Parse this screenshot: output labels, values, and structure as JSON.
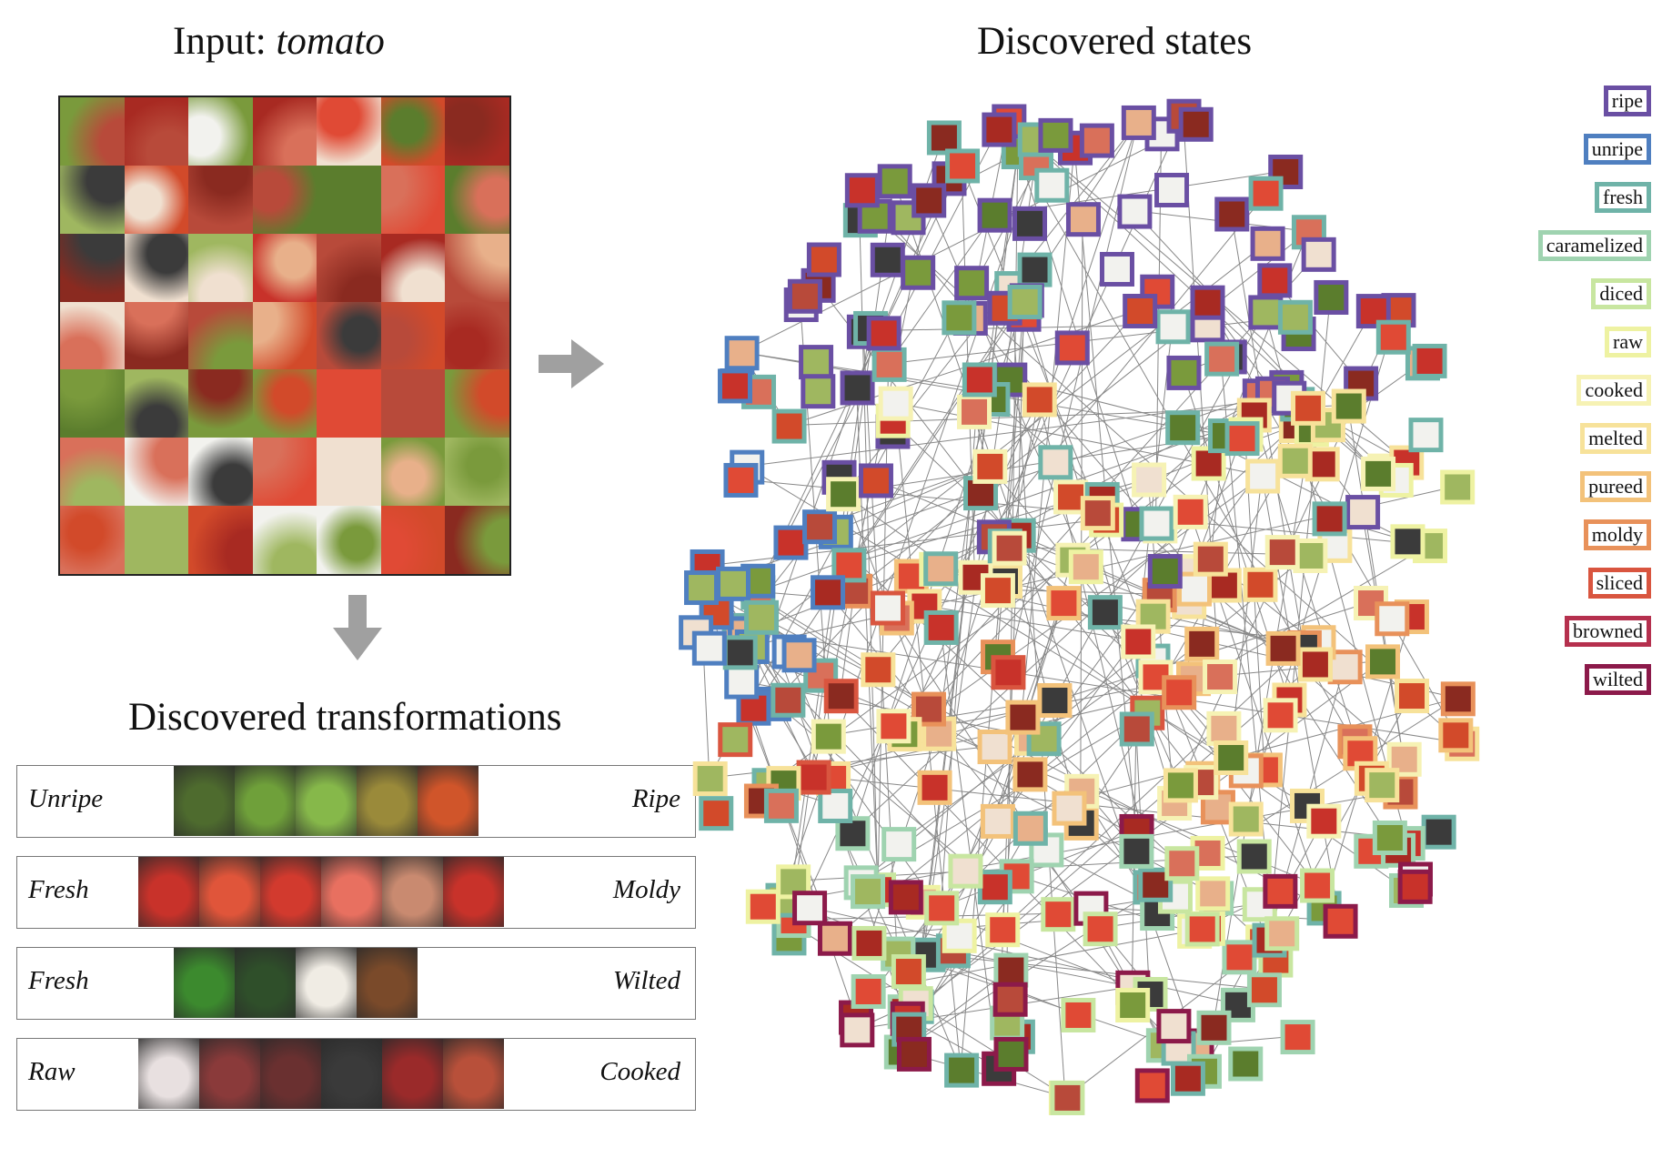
{
  "input": {
    "prefix": "Input: ",
    "object": "tomato"
  },
  "states_title": "Discovered states",
  "transformations_title": "Discovered transformations",
  "transformations": [
    {
      "left": "Unripe",
      "right": "Ripe"
    },
    {
      "left": "Fresh",
      "right": "Moldy"
    },
    {
      "left": "Fresh",
      "right": "Wilted"
    },
    {
      "left": "Raw",
      "right": "Cooked"
    }
  ],
  "legend": [
    {
      "label": "ripe",
      "color": "#6a4fa3"
    },
    {
      "label": "unripe",
      "color": "#4f7fc0"
    },
    {
      "label": "fresh",
      "color": "#6fb3a8"
    },
    {
      "label": "caramelized",
      "color": "#9fd3b0"
    },
    {
      "label": "diced",
      "color": "#c8e6a0"
    },
    {
      "label": "raw",
      "color": "#eef2a2"
    },
    {
      "label": "cooked",
      "color": "#f6f2b4"
    },
    {
      "label": "melted",
      "color": "#f7e29a"
    },
    {
      "label": "pureed",
      "color": "#f3c27a"
    },
    {
      "label": "moldy",
      "color": "#e8915a"
    },
    {
      "label": "sliced",
      "color": "#d9553f"
    },
    {
      "label": "browned",
      "color": "#b5304e"
    },
    {
      "label": "wilted",
      "color": "#8c1a4a"
    }
  ]
}
